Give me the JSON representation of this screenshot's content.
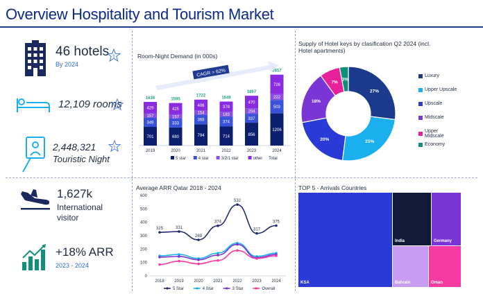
{
  "title": "Overview Hospitality and Tourism Market",
  "kpis": {
    "hotels": {
      "value": "46 hotels",
      "sub": "By 2024"
    },
    "rooms": {
      "value": "12,109 rooms"
    },
    "nights": {
      "value": "2,448,321",
      "sub": "Touristic Night"
    },
    "visitors": {
      "value": "1,627k",
      "sub1": "International",
      "sub2": "visitor"
    },
    "arr": {
      "value": "+18% ARR",
      "sub": "2023 - 2024"
    }
  },
  "panels": {
    "demand_title": "Room-Night Demand (in 000s)",
    "cagr": "CAGR = 62%",
    "keys_title_1": "Supply of Hotel keys by clasification Q2 2024 (incl.",
    "keys_title_2": "Hotel apartments)",
    "arr_title": "Average ARR Qatar 2018 - 2024",
    "arrivals_title": "TOP 5 -  Arrivals Countries"
  },
  "colors": {
    "title": "#0b2a8a",
    "five_star": "#0b1f6e",
    "four_star": "#3a52d8",
    "three_star": "#8a4fe0",
    "other": "#8a2be2",
    "total": "#1fa37a",
    "luxury": "#1a3a8c",
    "upper_upscale": "#1ab0f0",
    "upscale": "#2a3ad6",
    "midscale": "#7a35d6",
    "upper_midscale": "#e8209a",
    "economy": "#10907a"
  },
  "chart_data": [
    {
      "type": "bar",
      "title": "Room-Night Demand (in 000s)",
      "categories": [
        "2019",
        "2020",
        "2021",
        "2022",
        "2023",
        "2024"
      ],
      "series": [
        {
          "name": "5 star",
          "values": [
            701,
            680,
            794,
            714,
            856,
            1206
          ]
        },
        {
          "name": "4 star",
          "values": [
            349,
            333,
            368,
            374,
            337,
            503
          ]
        },
        {
          "name": "3/2/1 star",
          "values": [
            157,
            157,
            154,
            183,
            204,
            222
          ]
        },
        {
          "name": "other",
          "values": [
            429,
            425,
            406,
            378,
            470,
            726
          ]
        }
      ],
      "totals": [
        1636,
        1595,
        1722,
        1649,
        1867,
        2657
      ],
      "total_label": "Total",
      "annotation": "CAGR = 62%"
    },
    {
      "type": "pie",
      "title": "Supply of Hotel keys by clasification Q2 2024 (incl. Hotel apartments)",
      "labels": [
        "Luxury",
        "Upper Upscale",
        "Upscale",
        "Midscale",
        "Upper Midscale",
        "Economy"
      ],
      "values": [
        27,
        25,
        20,
        18,
        7,
        3
      ],
      "value_labels": [
        "27%",
        "25%",
        "20%",
        "18%",
        "7%",
        "3%"
      ],
      "legend": [
        "Luxury",
        "Upper Upscale",
        "Upscale",
        "Midscale",
        "Upper\nMidscale",
        "Economy"
      ],
      "donut": true
    },
    {
      "type": "line",
      "title": "Average ARR Qatar 2018 - 2024",
      "x": [
        "2018",
        "2019",
        "2020",
        "2021",
        "2022",
        "2023",
        "2024"
      ],
      "ylim": [
        0,
        600
      ],
      "yticks": [
        "0",
        "100",
        "200",
        "300",
        "400",
        "500",
        "600"
      ],
      "series": [
        {
          "name": "5 Star",
          "values": [
            325,
            331,
            269,
            374,
            532,
            317,
            375
          ],
          "labels": [
            "325",
            "331",
            "269",
            "374",
            "532",
            "317",
            "375"
          ]
        },
        {
          "name": "4 Star",
          "values": [
            150,
            160,
            130,
            170,
            245,
            145,
            170
          ]
        },
        {
          "name": "3 Star",
          "values": [
            140,
            145,
            120,
            155,
            235,
            135,
            160
          ]
        },
        {
          "name": "Overall",
          "values": [
            85,
            110,
            90,
            115,
            190,
            130,
            150
          ]
        }
      ]
    },
    {
      "type": "treemap",
      "title": "TOP 5 -  Arrivals Countries",
      "labels": [
        "KSA",
        "India",
        "Germany",
        "Bahrain",
        "Oman"
      ]
    }
  ]
}
